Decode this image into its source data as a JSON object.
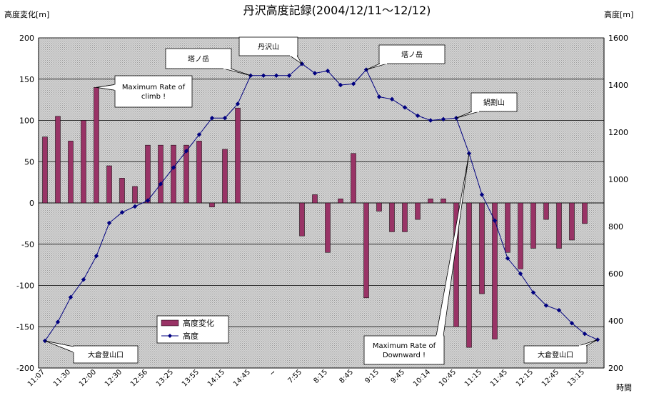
{
  "chart_data": {
    "type": "bar+line",
    "title": "丹沢高度記録(2004/12/11～12/12)",
    "y1label": "高度変化[m]",
    "y2label": "高度[m]",
    "xlabel": "時間",
    "y1lim": [
      -200,
      200
    ],
    "y1ticks": [
      200,
      150,
      100,
      50,
      0,
      -50,
      -100,
      -150,
      -200
    ],
    "y2lim": [
      200,
      1600
    ],
    "y2ticks": [
      1600,
      1400,
      1200,
      1000,
      800,
      600,
      400,
      200
    ],
    "xticklabels": [
      "11:07",
      "11:30",
      "12:00",
      "12:30",
      "12:56",
      "13:25",
      "13:55",
      "14:15",
      "14:45",
      "~",
      "7:55",
      "8:15",
      "8:45",
      "9:15",
      "9:45",
      "10:14",
      "10:45",
      "11:15",
      "11:45",
      "12:15",
      "12:45",
      "13:15"
    ],
    "grid": true,
    "legend_placement": "bottom-left",
    "series": [
      {
        "name": "高度変化",
        "type": "bar",
        "color": "#993366",
        "values": [
          80,
          105,
          75,
          100,
          140,
          45,
          30,
          20,
          70,
          70,
          70,
          70,
          75,
          -5,
          65,
          115,
          0,
          0,
          0,
          0,
          -40,
          10,
          -60,
          5,
          60,
          -115,
          -10,
          -35,
          -35,
          -20,
          5,
          5,
          -150,
          -175,
          -110,
          -165,
          -60,
          -80,
          -55,
          -20,
          -55,
          -45,
          -25,
          0
        ]
      },
      {
        "name": "高度",
        "type": "line",
        "color": "#000080",
        "values": [
          315,
          395,
          500,
          575,
          675,
          815,
          860,
          885,
          910,
          980,
          1050,
          1120,
          1190,
          1260,
          1260,
          1320,
          1440,
          1440,
          1440,
          1440,
          1490,
          1450,
          1460,
          1400,
          1405,
          1465,
          1350,
          1340,
          1305,
          1270,
          1250,
          1255,
          1260,
          1110,
          935,
          825,
          665,
          600,
          520,
          465,
          445,
          390,
          345,
          320
        ]
      }
    ],
    "annotations": [
      {
        "text": "塔ノ岳"
      },
      {
        "text": "丹沢山"
      },
      {
        "text": "塔ノ岳"
      },
      {
        "text": "Maximum Rate of climb !"
      },
      {
        "text": "鍋割山"
      },
      {
        "text": "大倉登山口"
      },
      {
        "text": "Maximum Rate of Downward !"
      },
      {
        "text": "大倉登山口"
      }
    ]
  },
  "colors": {
    "plot_bg": "#c0c0c0",
    "bar": "#993366",
    "line": "#000080"
  }
}
